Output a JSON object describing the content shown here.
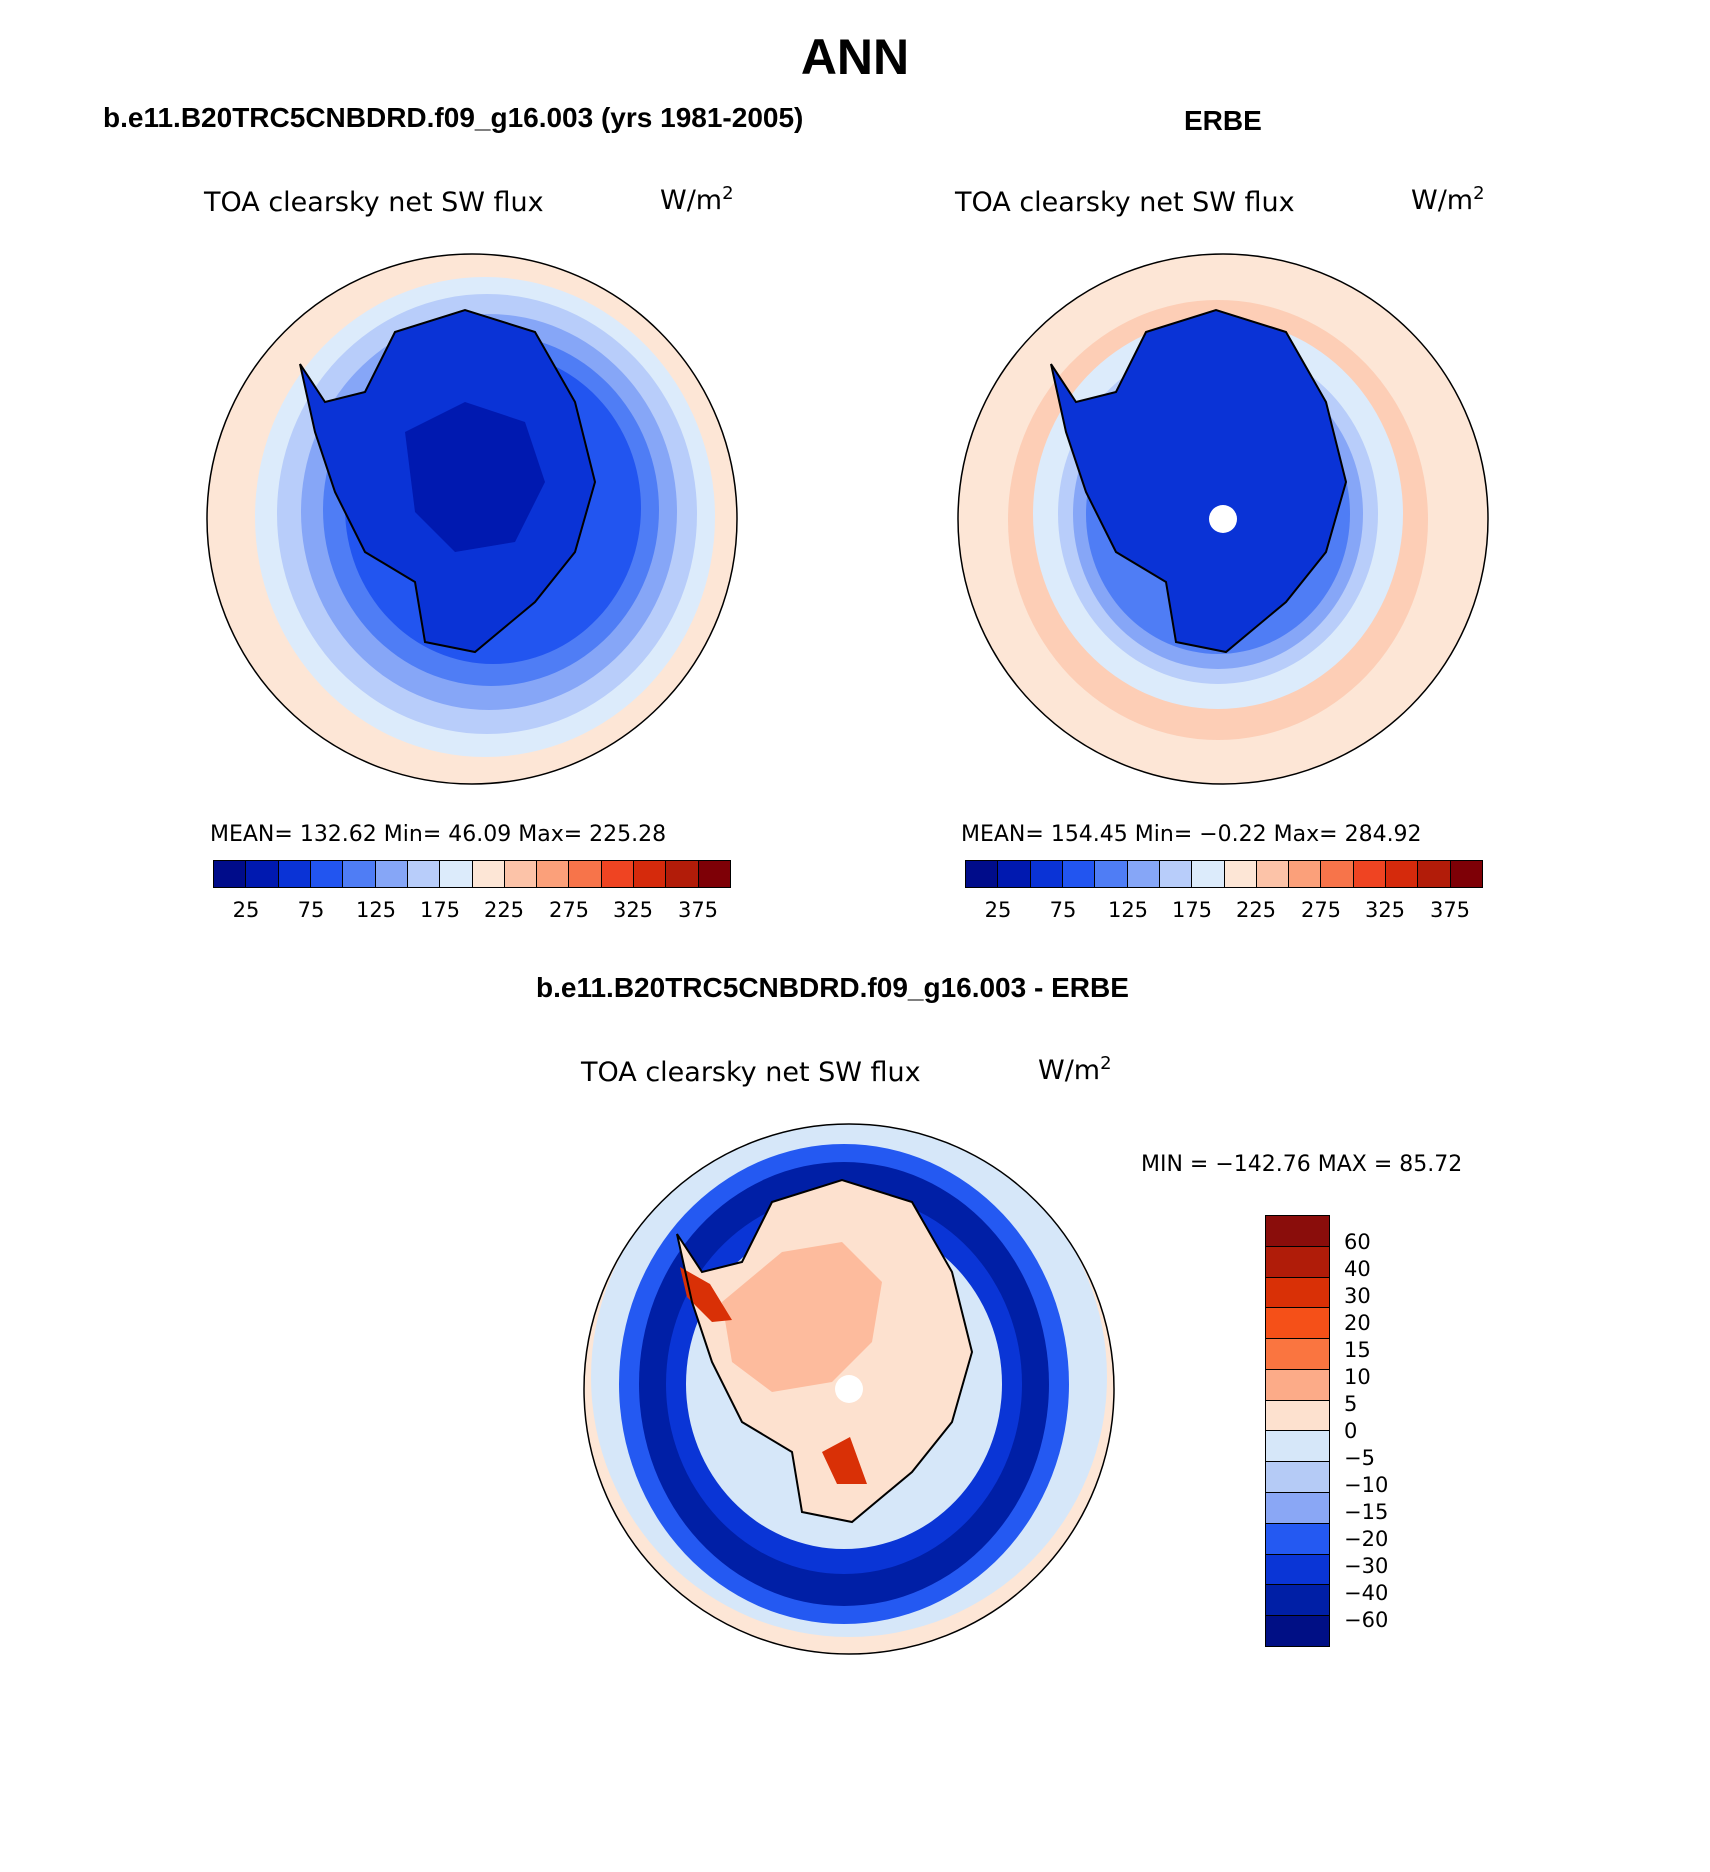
{
  "main_title": "ANN",
  "panels": [
    {
      "heading": "b.e11.B20TRC5CNBDRD.f09_g16.003 (yrs 1981-2005)",
      "variable": "TOA clearsky net SW flux",
      "unit": "W/m",
      "unit_sup": "2",
      "stats": "MEAN= 132.62   Min=   46.09   Max= 225.28",
      "tick_labels": [
        "25",
        "75",
        "125",
        "175",
        "225",
        "275",
        "325",
        "375"
      ]
    },
    {
      "heading": "ERBE",
      "variable": "TOA clearsky net SW flux",
      "unit": "W/m",
      "unit_sup": "2",
      "stats": "MEAN= 154.45   Min=   −0.22   Max= 284.92",
      "tick_labels": [
        "25",
        "75",
        "125",
        "175",
        "225",
        "275",
        "325",
        "375"
      ]
    },
    {
      "heading": "b.e11.B20TRC5CNBDRD.f09_g16.003 - ERBE",
      "variable": "TOA clearsky net SW flux",
      "unit": "W/m",
      "unit_sup": "2",
      "stats": "MIN = −142.76 MAX =   85.72",
      "tick_labels": [
        "60",
        "40",
        "30",
        "20",
        "15",
        "10",
        "5",
        "0",
        "−5",
        "−10",
        "−15",
        "−20",
        "−30",
        "−40",
        "−60"
      ]
    }
  ],
  "colors": {
    "abs_scale": [
      "#000c8a",
      "#0019b0",
      "#0a33d6",
      "#2255f0",
      "#4f7df5",
      "#86a6f7",
      "#b8cdfa",
      "#dcebfb",
      "#fde6d6",
      "#fcc3a8",
      "#fba07a",
      "#f7744a",
      "#ef4422",
      "#d52a0c",
      "#b21c09",
      "#7e0006"
    ],
    "diff_scale": [
      "#8a0d0b",
      "#b01c09",
      "#d93006",
      "#f55018",
      "#fa7540",
      "#fcab88",
      "#fde1cf",
      "#d6e7f9",
      "#b5cbf6",
      "#8aa7f5",
      "#2459f2",
      "#0a35d6",
      "#001fa6",
      "#000f85"
    ]
  }
}
